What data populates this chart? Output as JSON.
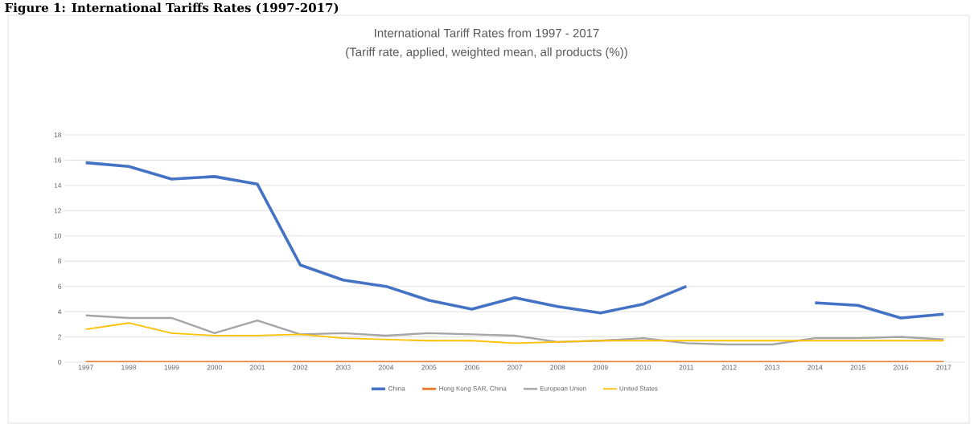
{
  "chart_data": {
    "type": "line",
    "title": "International Tariff Rates from 1997 - 2017",
    "subtitle": "(Tariff rate, applied, weighted mean, all products (%))",
    "annotations": [
      "Figure 1: International Tariffs Rates (1997-2017)"
    ],
    "categories": [
      "1997",
      "1998",
      "1999",
      "2000",
      "2001",
      "2002",
      "2003",
      "2004",
      "2005",
      "2006",
      "2007",
      "2008",
      "2009",
      "2010",
      "2011",
      "2012",
      "2013",
      "2014",
      "2015",
      "2016",
      "2017"
    ],
    "series": [
      {
        "name": "China",
        "color": "#4472c4",
        "values": [
          15.8,
          15.5,
          14.5,
          14.7,
          14.1,
          7.7,
          6.5,
          6.0,
          4.9,
          4.2,
          5.1,
          4.4,
          3.9,
          4.6,
          6.0,
          null,
          null,
          4.7,
          4.5,
          3.5,
          3.8
        ]
      },
      {
        "name": "Hong Kong SAR, China",
        "color": "#ed7d31",
        "values": [
          0,
          0,
          0,
          0,
          0,
          0,
          0,
          0,
          0,
          0,
          0,
          0,
          0,
          0,
          0,
          0,
          0,
          0,
          0,
          0,
          0
        ]
      },
      {
        "name": "European Union",
        "color": "#a5a5a5",
        "values": [
          3.7,
          3.5,
          3.5,
          2.3,
          3.3,
          2.2,
          2.3,
          2.1,
          2.3,
          2.2,
          2.1,
          1.6,
          1.7,
          1.9,
          1.5,
          1.4,
          1.4,
          1.9,
          1.9,
          2.0,
          1.8
        ]
      },
      {
        "name": "United States",
        "color": "#ffc000",
        "values": [
          2.6,
          3.1,
          2.3,
          2.1,
          2.1,
          2.2,
          1.9,
          1.8,
          1.7,
          1.7,
          1.5,
          1.6,
          1.7,
          1.7,
          1.7,
          1.7,
          1.7,
          1.7,
          1.7,
          1.7,
          1.7
        ]
      }
    ],
    "ylim": [
      0,
      18
    ],
    "yticks": [
      0,
      2,
      4,
      6,
      8,
      10,
      12,
      14,
      16,
      18
    ],
    "grid": "y",
    "legend": "bottom",
    "marker": "none",
    "line_style": "solid"
  }
}
